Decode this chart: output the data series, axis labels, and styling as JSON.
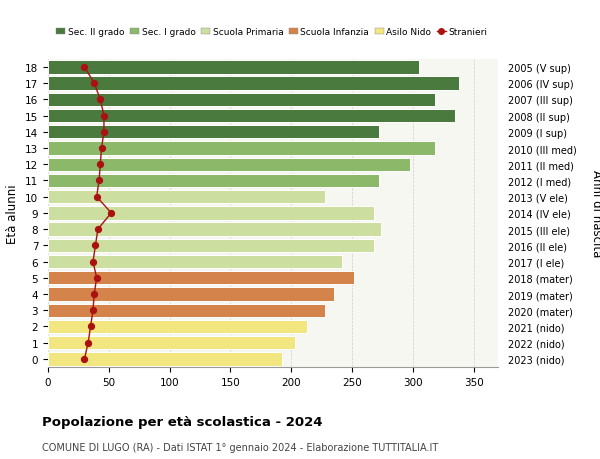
{
  "ages": [
    0,
    1,
    2,
    3,
    4,
    5,
    6,
    7,
    8,
    9,
    10,
    11,
    12,
    13,
    14,
    15,
    16,
    17,
    18
  ],
  "years": [
    "2023 (nido)",
    "2022 (nido)",
    "2021 (nido)",
    "2020 (mater)",
    "2019 (mater)",
    "2018 (mater)",
    "2017 (I ele)",
    "2016 (II ele)",
    "2015 (III ele)",
    "2014 (IV ele)",
    "2013 (V ele)",
    "2012 (I med)",
    "2011 (II med)",
    "2010 (III med)",
    "2009 (I sup)",
    "2008 (II sup)",
    "2007 (III sup)",
    "2006 (IV sup)",
    "2005 (V sup)"
  ],
  "bar_values": [
    192,
    203,
    213,
    228,
    235,
    252,
    242,
    268,
    274,
    268,
    228,
    272,
    298,
    318,
    272,
    335,
    318,
    338,
    305
  ],
  "bar_colors": [
    "#f2e680",
    "#f2e680",
    "#f2e680",
    "#d4834a",
    "#d4834a",
    "#d4834a",
    "#cddfa0",
    "#cddfa0",
    "#cddfa0",
    "#cddfa0",
    "#cddfa0",
    "#8cb86a",
    "#8cb86a",
    "#8cb86a",
    "#4a7a3e",
    "#4a7a3e",
    "#4a7a3e",
    "#4a7a3e",
    "#4a7a3e"
  ],
  "stranieri_values": [
    30,
    33,
    35,
    37,
    38,
    40,
    37,
    39,
    41,
    52,
    40,
    42,
    43,
    44,
    46,
    46,
    43,
    38,
    30
  ],
  "legend_labels": [
    "Sec. II grado",
    "Sec. I grado",
    "Scuola Primaria",
    "Scuola Infanzia",
    "Asilo Nido",
    "Stranieri"
  ],
  "legend_colors": [
    "#4a7a3e",
    "#8cb86a",
    "#cddfa0",
    "#d4834a",
    "#f2e680",
    "#aa1111"
  ],
  "ylabel_left": "Età alunni",
  "ylabel_right": "Anni di nascita",
  "title": "Popolazione per età scolastica - 2024",
  "subtitle": "COMUNE DI LUGO (RA) - Dati ISTAT 1° gennaio 2024 - Elaborazione TUTTITALIA.IT",
  "xlim": [
    0,
    370
  ],
  "xticks": [
    0,
    50,
    100,
    150,
    200,
    250,
    300,
    350
  ],
  "bg_color": "#f7f7f2",
  "bar_height": 0.82
}
